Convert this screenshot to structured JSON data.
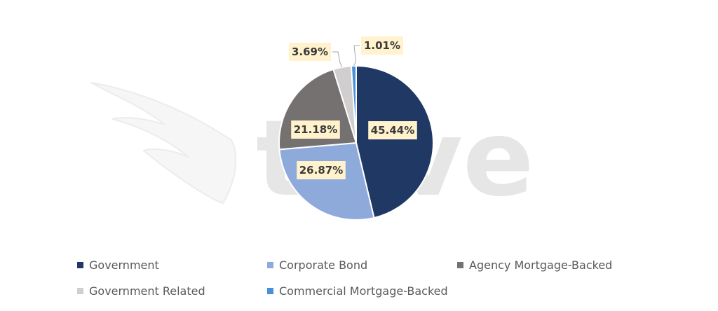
{
  "chart_data": {
    "type": "pie",
    "title": "",
    "slices": [
      {
        "name": "Government",
        "value": 45.44,
        "label": "45.44%",
        "color": "#1f3864"
      },
      {
        "name": "Corporate Bond",
        "value": 26.87,
        "label": "26.87%",
        "color": "#8eaadb"
      },
      {
        "name": "Agency Mortgage-Backed",
        "value": 21.18,
        "label": "21.18%",
        "color": "#767171"
      },
      {
        "name": "Government Related",
        "value": 3.69,
        "label": "3.69%",
        "color": "#d0cece"
      },
      {
        "name": "Commercial Mortgage-Backed",
        "value": 1.01,
        "label": "1.01%",
        "color": "#4a90d9"
      }
    ],
    "start_angle_deg": 0,
    "direction": "clockwise",
    "legend_position": "bottom",
    "data_label_background": "#fff2cc"
  },
  "watermark": {
    "text": "trive",
    "color": "#d9d9d9"
  }
}
